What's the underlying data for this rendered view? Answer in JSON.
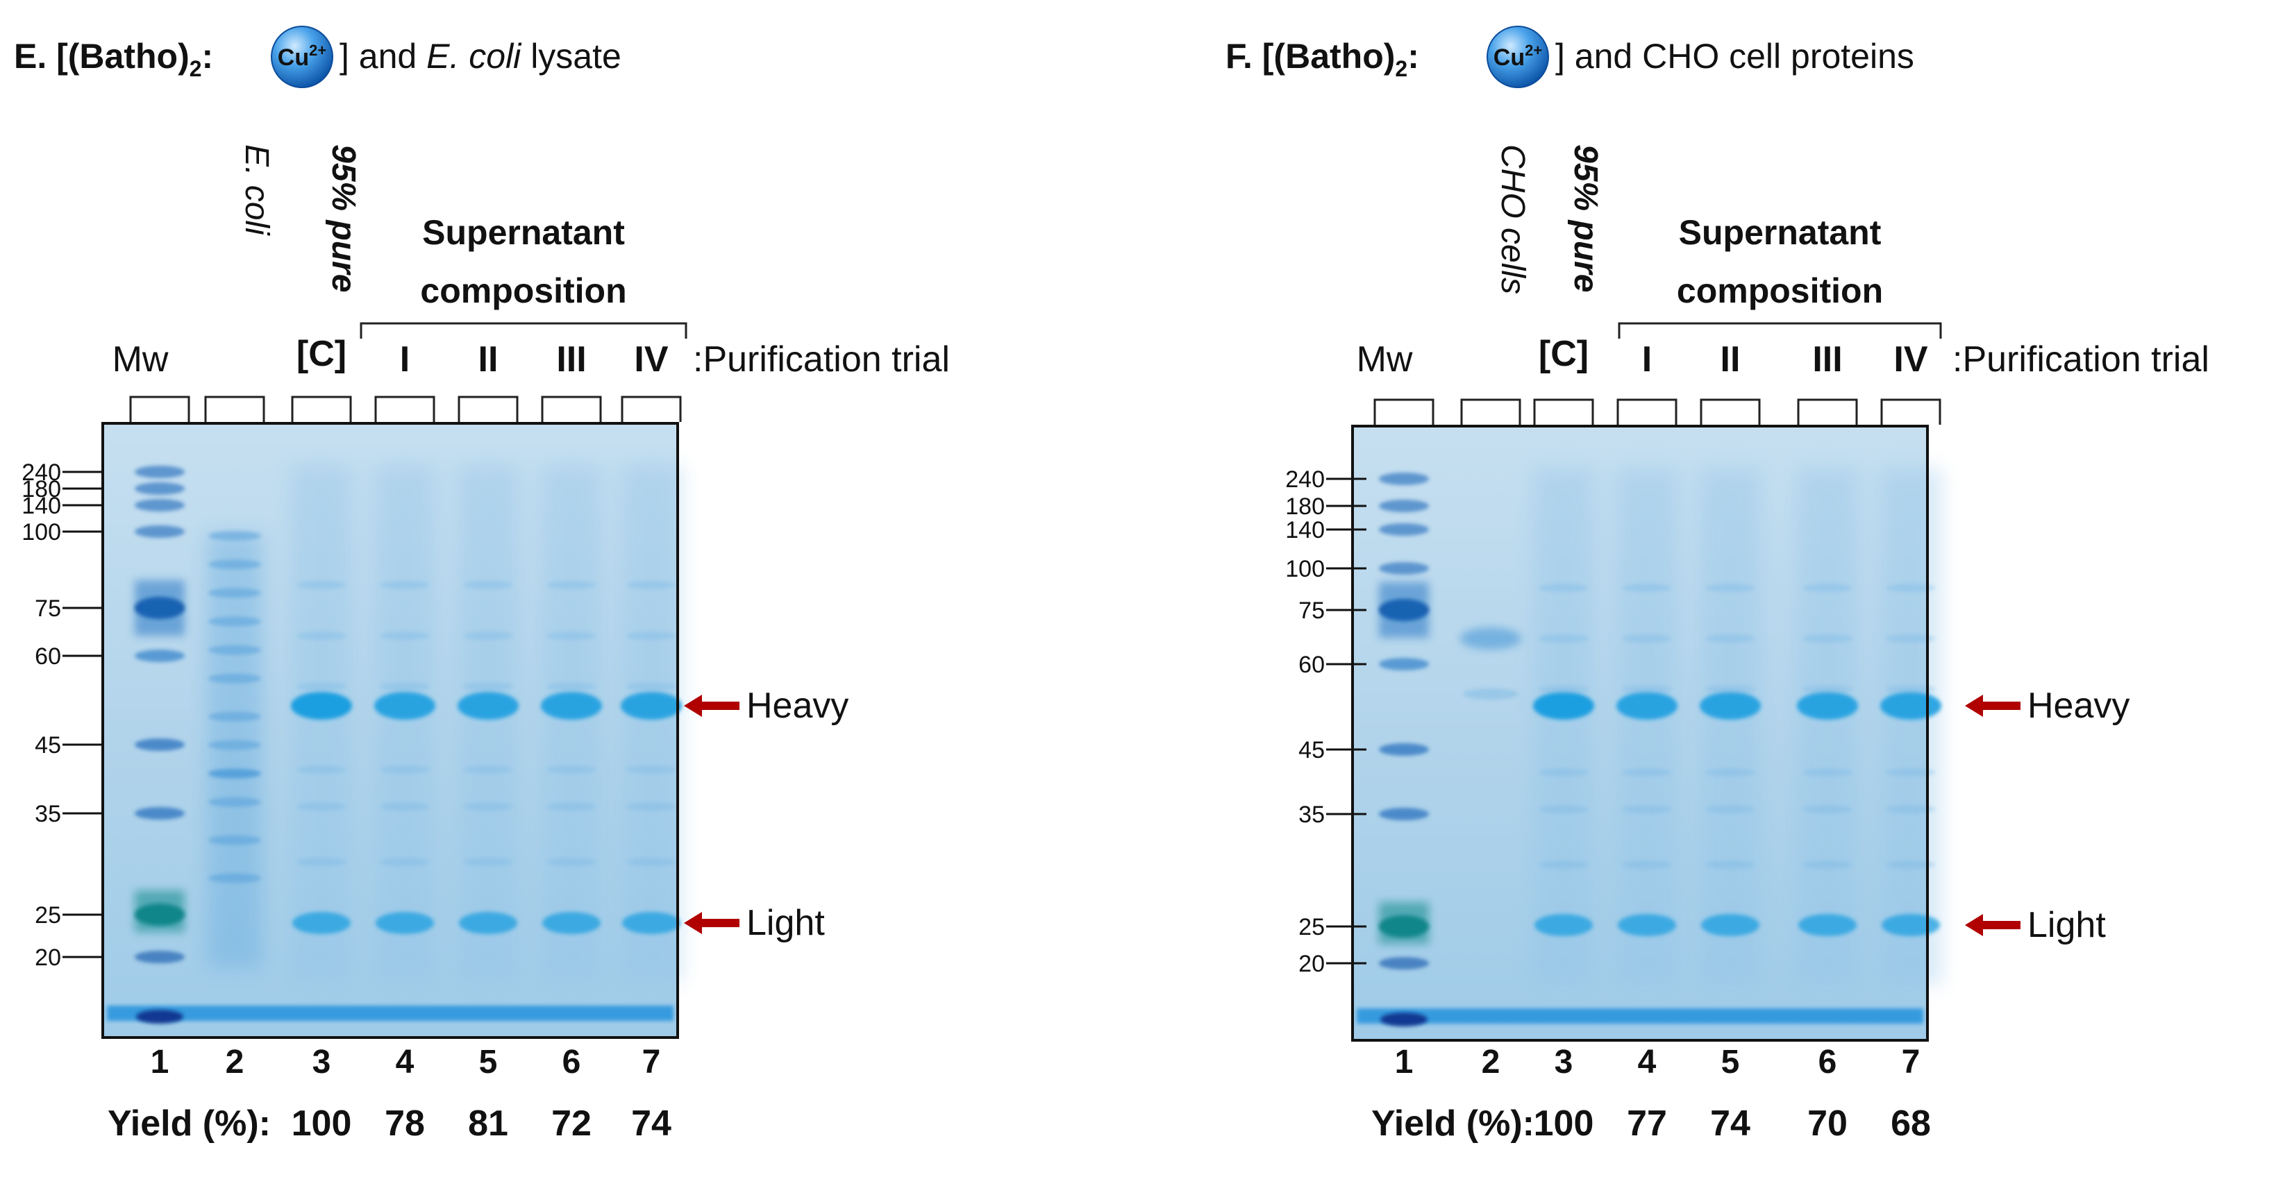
{
  "panels": [
    {
      "id": "E",
      "title_prefix": "E. [(Batho)",
      "title_sub": "2",
      "title_colon": ":",
      "ion": "Cu",
      "ion_charge": "2+",
      "title_close": "]",
      "title_and": "and",
      "title_italic": "E. coli",
      "title_rest": "lysate",
      "lane_label_mw": "Mw",
      "lane_label_sample": "E. coli",
      "lane_label_pure": "95% pure",
      "lane_label_c": "[C]",
      "group_label_line1": "Supernatant",
      "group_label_line2": "composition",
      "trials": [
        "I",
        "II",
        "III",
        "IV"
      ],
      "trial_caption": ":Purification trial",
      "mw_markers": [
        "240",
        "180",
        "140",
        "100",
        "75",
        "60",
        "45",
        "35",
        "25",
        "20"
      ],
      "lane_numbers": [
        "1",
        "2",
        "3",
        "4",
        "5",
        "6",
        "7"
      ],
      "yield_label": "Yield (%):",
      "yields": [
        "100",
        "78",
        "81",
        "72",
        "74"
      ],
      "arrow_heavy": "Heavy",
      "arrow_light": "Light"
    },
    {
      "id": "F",
      "title_prefix": "F. [(Batho)",
      "title_sub": "2",
      "title_colon": ":",
      "ion": "Cu",
      "ion_charge": "2+",
      "title_close": "]",
      "title_and": "and CHO cell proteins",
      "title_italic": "",
      "title_rest": "",
      "lane_label_mw": "Mw",
      "lane_label_sample": "CHO cells",
      "lane_label_pure": "95% pure",
      "lane_label_c": "[C]",
      "group_label_line1": "Supernatant",
      "group_label_line2": "composition",
      "trials": [
        "I",
        "II",
        "III",
        "IV"
      ],
      "trial_caption": ":Purification trial",
      "mw_markers": [
        "240",
        "180",
        "140",
        "100",
        "75",
        "60",
        "45",
        "35",
        "25",
        "20"
      ],
      "lane_numbers": [
        "1",
        "2",
        "3",
        "4",
        "5",
        "6",
        "7"
      ],
      "yield_label": "Yield (%):",
      "yields": [
        "100",
        "77",
        "74",
        "70",
        "68"
      ],
      "arrow_heavy": "Heavy",
      "arrow_light": "Light"
    }
  ],
  "colors": {
    "gel_bg": "#a9cde6",
    "band": "#1a9fe0",
    "band_dark": "#0b5fa8",
    "yield_value": "#1f6fbf",
    "c_label": "#c00000",
    "arrow": "#b00000",
    "ion_ball": "#2b86d6"
  }
}
